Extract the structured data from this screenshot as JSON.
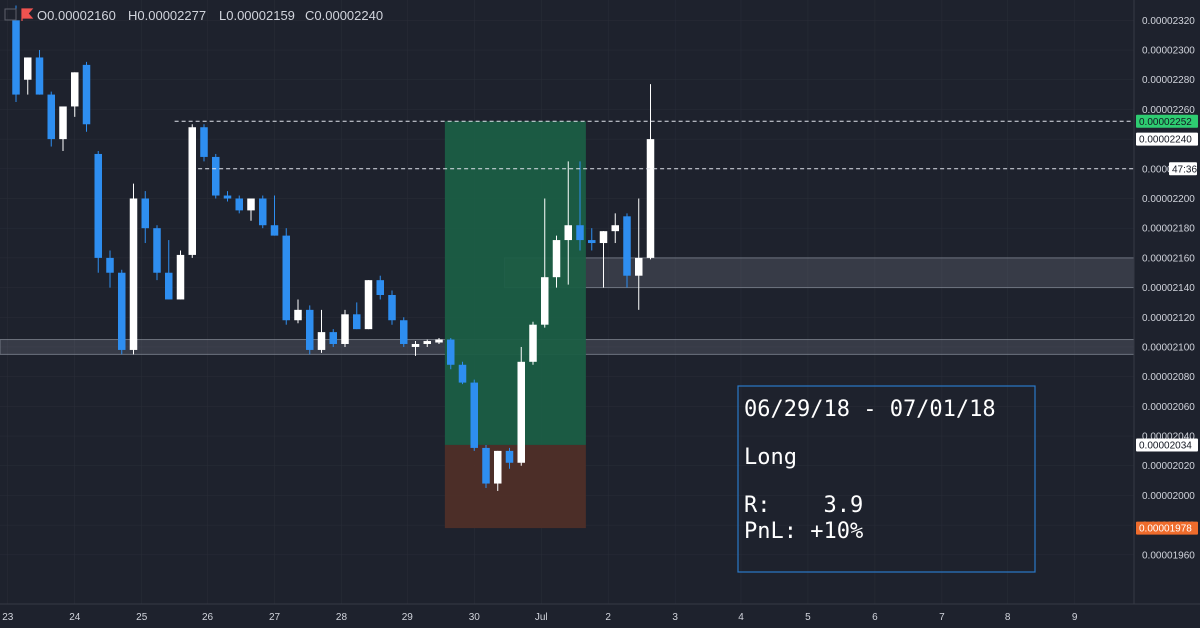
{
  "header": {
    "icon": "tradingview-flag-icon",
    "ohlc": [
      {
        "label": "O",
        "value": "0.00002160"
      },
      {
        "label": "H",
        "value": "0.00002277"
      },
      {
        "label": "L",
        "value": "0.00002159"
      },
      {
        "label": "C",
        "value": "0.00002240"
      }
    ]
  },
  "colors": {
    "background": "#1e222d",
    "up": "#ffffff",
    "down": "#2e8ef0",
    "profit_zone": "#1b5e44",
    "loss_zone": "#4f2f28",
    "zone_band": "#7a7f8c",
    "grid": "#2a2e39",
    "note_border": "#2a78c9",
    "price_badge_green": "#2ecc71",
    "price_badge_orange": "#ef6c2c"
  },
  "chart_data": {
    "type": "candlestick",
    "title": "",
    "ylim": [
      1.94e-05,
      2.33e-05
    ],
    "y_ticks": [
      "0.00002320",
      "0.00002300",
      "0.00002280",
      "0.00002260",
      "0.00002240",
      "0.00002220",
      "0.00002200",
      "0.00002180",
      "0.00002160",
      "0.00002140",
      "0.00002120",
      "0.00002100",
      "0.00002080",
      "0.00002060",
      "0.00002040",
      "0.00002020",
      "0.00002000",
      "0.00001980",
      "0.00001960"
    ],
    "x_ticks": [
      {
        "label": "23",
        "bar": -0.7
      },
      {
        "label": "24",
        "bar": 5.0
      },
      {
        "label": "25",
        "bar": 10.7
      },
      {
        "label": "26",
        "bar": 16.3
      },
      {
        "label": "27",
        "bar": 22.0
      },
      {
        "label": "28",
        "bar": 27.7
      },
      {
        "label": "29",
        "bar": 33.3
      },
      {
        "label": "30",
        "bar": 39.0
      },
      {
        "label": "Jul",
        "bar": 44.7
      },
      {
        "label": "2",
        "bar": 50.4
      },
      {
        "label": "3",
        "bar": 56.1
      },
      {
        "label": "4",
        "bar": 61.7
      },
      {
        "label": "5",
        "bar": 67.4
      },
      {
        "label": "6",
        "bar": 73.1
      },
      {
        "label": "7",
        "bar": 78.8
      },
      {
        "label": "8",
        "bar": 84.4
      },
      {
        "label": "9",
        "bar": 90.1
      }
    ],
    "candles": [
      {
        "o": 2.32e-05,
        "h": 2.33e-05,
        "l": 2.265e-05,
        "c": 2.27e-05
      },
      {
        "o": 2.28e-05,
        "h": 2.295e-05,
        "l": 2.27e-05,
        "c": 2.295e-05
      },
      {
        "o": 2.295e-05,
        "h": 2.3e-05,
        "l": 2.27e-05,
        "c": 2.27e-05
      },
      {
        "o": 2.27e-05,
        "h": 2.272e-05,
        "l": 2.235e-05,
        "c": 2.24e-05
      },
      {
        "o": 2.24e-05,
        "h": 2.262e-05,
        "l": 2.232e-05,
        "c": 2.262e-05
      },
      {
        "o": 2.262e-05,
        "h": 2.285e-05,
        "l": 2.255e-05,
        "c": 2.285e-05
      },
      {
        "o": 2.29e-05,
        "h": 2.292e-05,
        "l": 2.245e-05,
        "c": 2.25e-05
      },
      {
        "o": 2.23e-05,
        "h": 2.232e-05,
        "l": 2.15e-05,
        "c": 2.16e-05
      },
      {
        "o": 2.16e-05,
        "h": 2.165e-05,
        "l": 2.14e-05,
        "c": 2.15e-05
      },
      {
        "o": 2.15e-05,
        "h": 2.152e-05,
        "l": 2.095e-05,
        "c": 2.098e-05
      },
      {
        "o": 2.098e-05,
        "h": 2.21e-05,
        "l": 2.095e-05,
        "c": 2.2e-05
      },
      {
        "o": 2.2e-05,
        "h": 2.205e-05,
        "l": 2.17e-05,
        "c": 2.18e-05
      },
      {
        "o": 2.18e-05,
        "h": 2.182e-05,
        "l": 2.145e-05,
        "c": 2.15e-05
      },
      {
        "o": 2.15e-05,
        "h": 2.172e-05,
        "l": 2.132e-05,
        "c": 2.132e-05
      },
      {
        "o": 2.132e-05,
        "h": 2.165e-05,
        "l": 2.132e-05,
        "c": 2.162e-05
      },
      {
        "o": 2.162e-05,
        "h": 2.25e-05,
        "l": 2.16e-05,
        "c": 2.248e-05
      },
      {
        "o": 2.248e-05,
        "h": 2.25e-05,
        "l": 2.225e-05,
        "c": 2.228e-05
      },
      {
        "o": 2.228e-05,
        "h": 2.23e-05,
        "l": 2.2e-05,
        "c": 2.202e-05
      },
      {
        "o": 2.202e-05,
        "h": 2.205e-05,
        "l": 2.198e-05,
        "c": 2.2e-05
      },
      {
        "o": 2.2e-05,
        "h": 2.202e-05,
        "l": 2.19e-05,
        "c": 2.192e-05
      },
      {
        "o": 2.192e-05,
        "h": 2.2e-05,
        "l": 2.185e-05,
        "c": 2.2e-05
      },
      {
        "o": 2.2e-05,
        "h": 2.202e-05,
        "l": 2.18e-05,
        "c": 2.182e-05
      },
      {
        "o": 2.182e-05,
        "h": 2.202e-05,
        "l": 2.175e-05,
        "c": 2.175e-05
      },
      {
        "o": 2.175e-05,
        "h": 2.18e-05,
        "l": 2.115e-05,
        "c": 2.118e-05
      },
      {
        "o": 2.118e-05,
        "h": 2.132e-05,
        "l": 2.116e-05,
        "c": 2.125e-05
      },
      {
        "o": 2.125e-05,
        "h": 2.128e-05,
        "l": 2.095e-05,
        "c": 2.098e-05
      },
      {
        "o": 2.098e-05,
        "h": 2.125e-05,
        "l": 2.096e-05,
        "c": 2.11e-05
      },
      {
        "o": 2.11e-05,
        "h": 2.112e-05,
        "l": 2.1e-05,
        "c": 2.102e-05
      },
      {
        "o": 2.102e-05,
        "h": 2.125e-05,
        "l": 2.1e-05,
        "c": 2.122e-05
      },
      {
        "o": 2.122e-05,
        "h": 2.13e-05,
        "l": 2.112e-05,
        "c": 2.112e-05
      },
      {
        "o": 2.112e-05,
        "h": 2.145e-05,
        "l": 2.112e-05,
        "c": 2.145e-05
      },
      {
        "o": 2.145e-05,
        "h": 2.148e-05,
        "l": 2.132e-05,
        "c": 2.135e-05
      },
      {
        "o": 2.135e-05,
        "h": 2.138e-05,
        "l": 2.115e-05,
        "c": 2.118e-05
      },
      {
        "o": 2.118e-05,
        "h": 2.12e-05,
        "l": 2.1e-05,
        "c": 2.102e-05
      },
      {
        "o": 2.1e-05,
        "h": 2.104e-05,
        "l": 2.094e-05,
        "c": 2.102e-05
      },
      {
        "o": 2.102e-05,
        "h": 2.105e-05,
        "l": 2.1e-05,
        "c": 2.104e-05
      },
      {
        "o": 2.103e-05,
        "h": 2.106e-05,
        "l": 2.102e-05,
        "c": 2.105e-05
      },
      {
        "o": 2.105e-05,
        "h": 2.106e-05,
        "l": 2.085e-05,
        "c": 2.088e-05
      },
      {
        "o": 2.088e-05,
        "h": 2.09e-05,
        "l": 2.075e-05,
        "c": 2.076e-05
      },
      {
        "o": 2.076e-05,
        "h": 2.078e-05,
        "l": 2.03e-05,
        "c": 2.032e-05
      },
      {
        "o": 2.032e-05,
        "h": 2.034e-05,
        "l": 2.005e-05,
        "c": 2.008e-05
      },
      {
        "o": 2.008e-05,
        "h": 2.03e-05,
        "l": 2.003e-05,
        "c": 2.03e-05
      },
      {
        "o": 2.03e-05,
        "h": 2.032e-05,
        "l": 2.018e-05,
        "c": 2.022e-05
      },
      {
        "o": 2.022e-05,
        "h": 2.1e-05,
        "l": 2.02e-05,
        "c": 2.09e-05
      },
      {
        "o": 2.09e-05,
        "h": 2.117e-05,
        "l": 2.088e-05,
        "c": 2.115e-05
      },
      {
        "o": 2.115e-05,
        "h": 2.2e-05,
        "l": 2.113e-05,
        "c": 2.147e-05
      },
      {
        "o": 2.147e-05,
        "h": 2.175e-05,
        "l": 2.14e-05,
        "c": 2.172e-05
      },
      {
        "o": 2.172e-05,
        "h": 2.225e-05,
        "l": 2.142e-05,
        "c": 2.182e-05
      },
      {
        "o": 2.182e-05,
        "h": 2.225e-05,
        "l": 2.165e-05,
        "c": 2.172e-05
      },
      {
        "o": 2.172e-05,
        "h": 2.18e-05,
        "l": 2.165e-05,
        "c": 2.17e-05
      },
      {
        "o": 2.17e-05,
        "h": 2.178e-05,
        "l": 2.14e-05,
        "c": 2.178e-05
      },
      {
        "o": 2.178e-05,
        "h": 2.19e-05,
        "l": 2.17e-05,
        "c": 2.182e-05
      },
      {
        "o": 2.188e-05,
        "h": 2.19e-05,
        "l": 2.14e-05,
        "c": 2.148e-05
      },
      {
        "o": 2.148e-05,
        "h": 2.2e-05,
        "l": 2.125e-05,
        "c": 2.16e-05
      },
      {
        "o": 2.16e-05,
        "h": 2.277e-05,
        "l": 2.159e-05,
        "c": 2.24e-05
      }
    ],
    "zones": [
      {
        "y1": 2.16e-05,
        "y2": 2.14e-05,
        "from_bar": 42
      },
      {
        "y1": 2.105e-05,
        "y2": 2.095e-05,
        "from_bar": -2
      }
    ],
    "position": {
      "side": "Long",
      "from_bar": 36.5,
      "to_bar": 48.5,
      "entry": 2.034e-05,
      "target": 2.252e-05,
      "stop": 1.978e-05
    },
    "dashed_lines": [
      {
        "price": 2.252e-05,
        "from_bar": 13.5
      },
      {
        "price": 2.22e-05,
        "from_bar": 15.5
      }
    ]
  },
  "price_badges": [
    {
      "price": 2.252e-05,
      "label": "0.00002252",
      "style": "green"
    },
    {
      "price": 2.24e-05,
      "label": "0.00002240",
      "style": "white"
    },
    {
      "price": 2.22e-05,
      "label": "47:36",
      "style": "white-small"
    },
    {
      "price": 2.034e-05,
      "label": "0.00002034",
      "style": "white"
    },
    {
      "price": 1.978e-05,
      "label": "0.00001978",
      "style": "orange"
    }
  ],
  "note": {
    "date_range": "06/29/18 - 07/01/18",
    "side": "Long",
    "r_line": "R:    3.9",
    "pnl_line": "PnL: +10%"
  }
}
